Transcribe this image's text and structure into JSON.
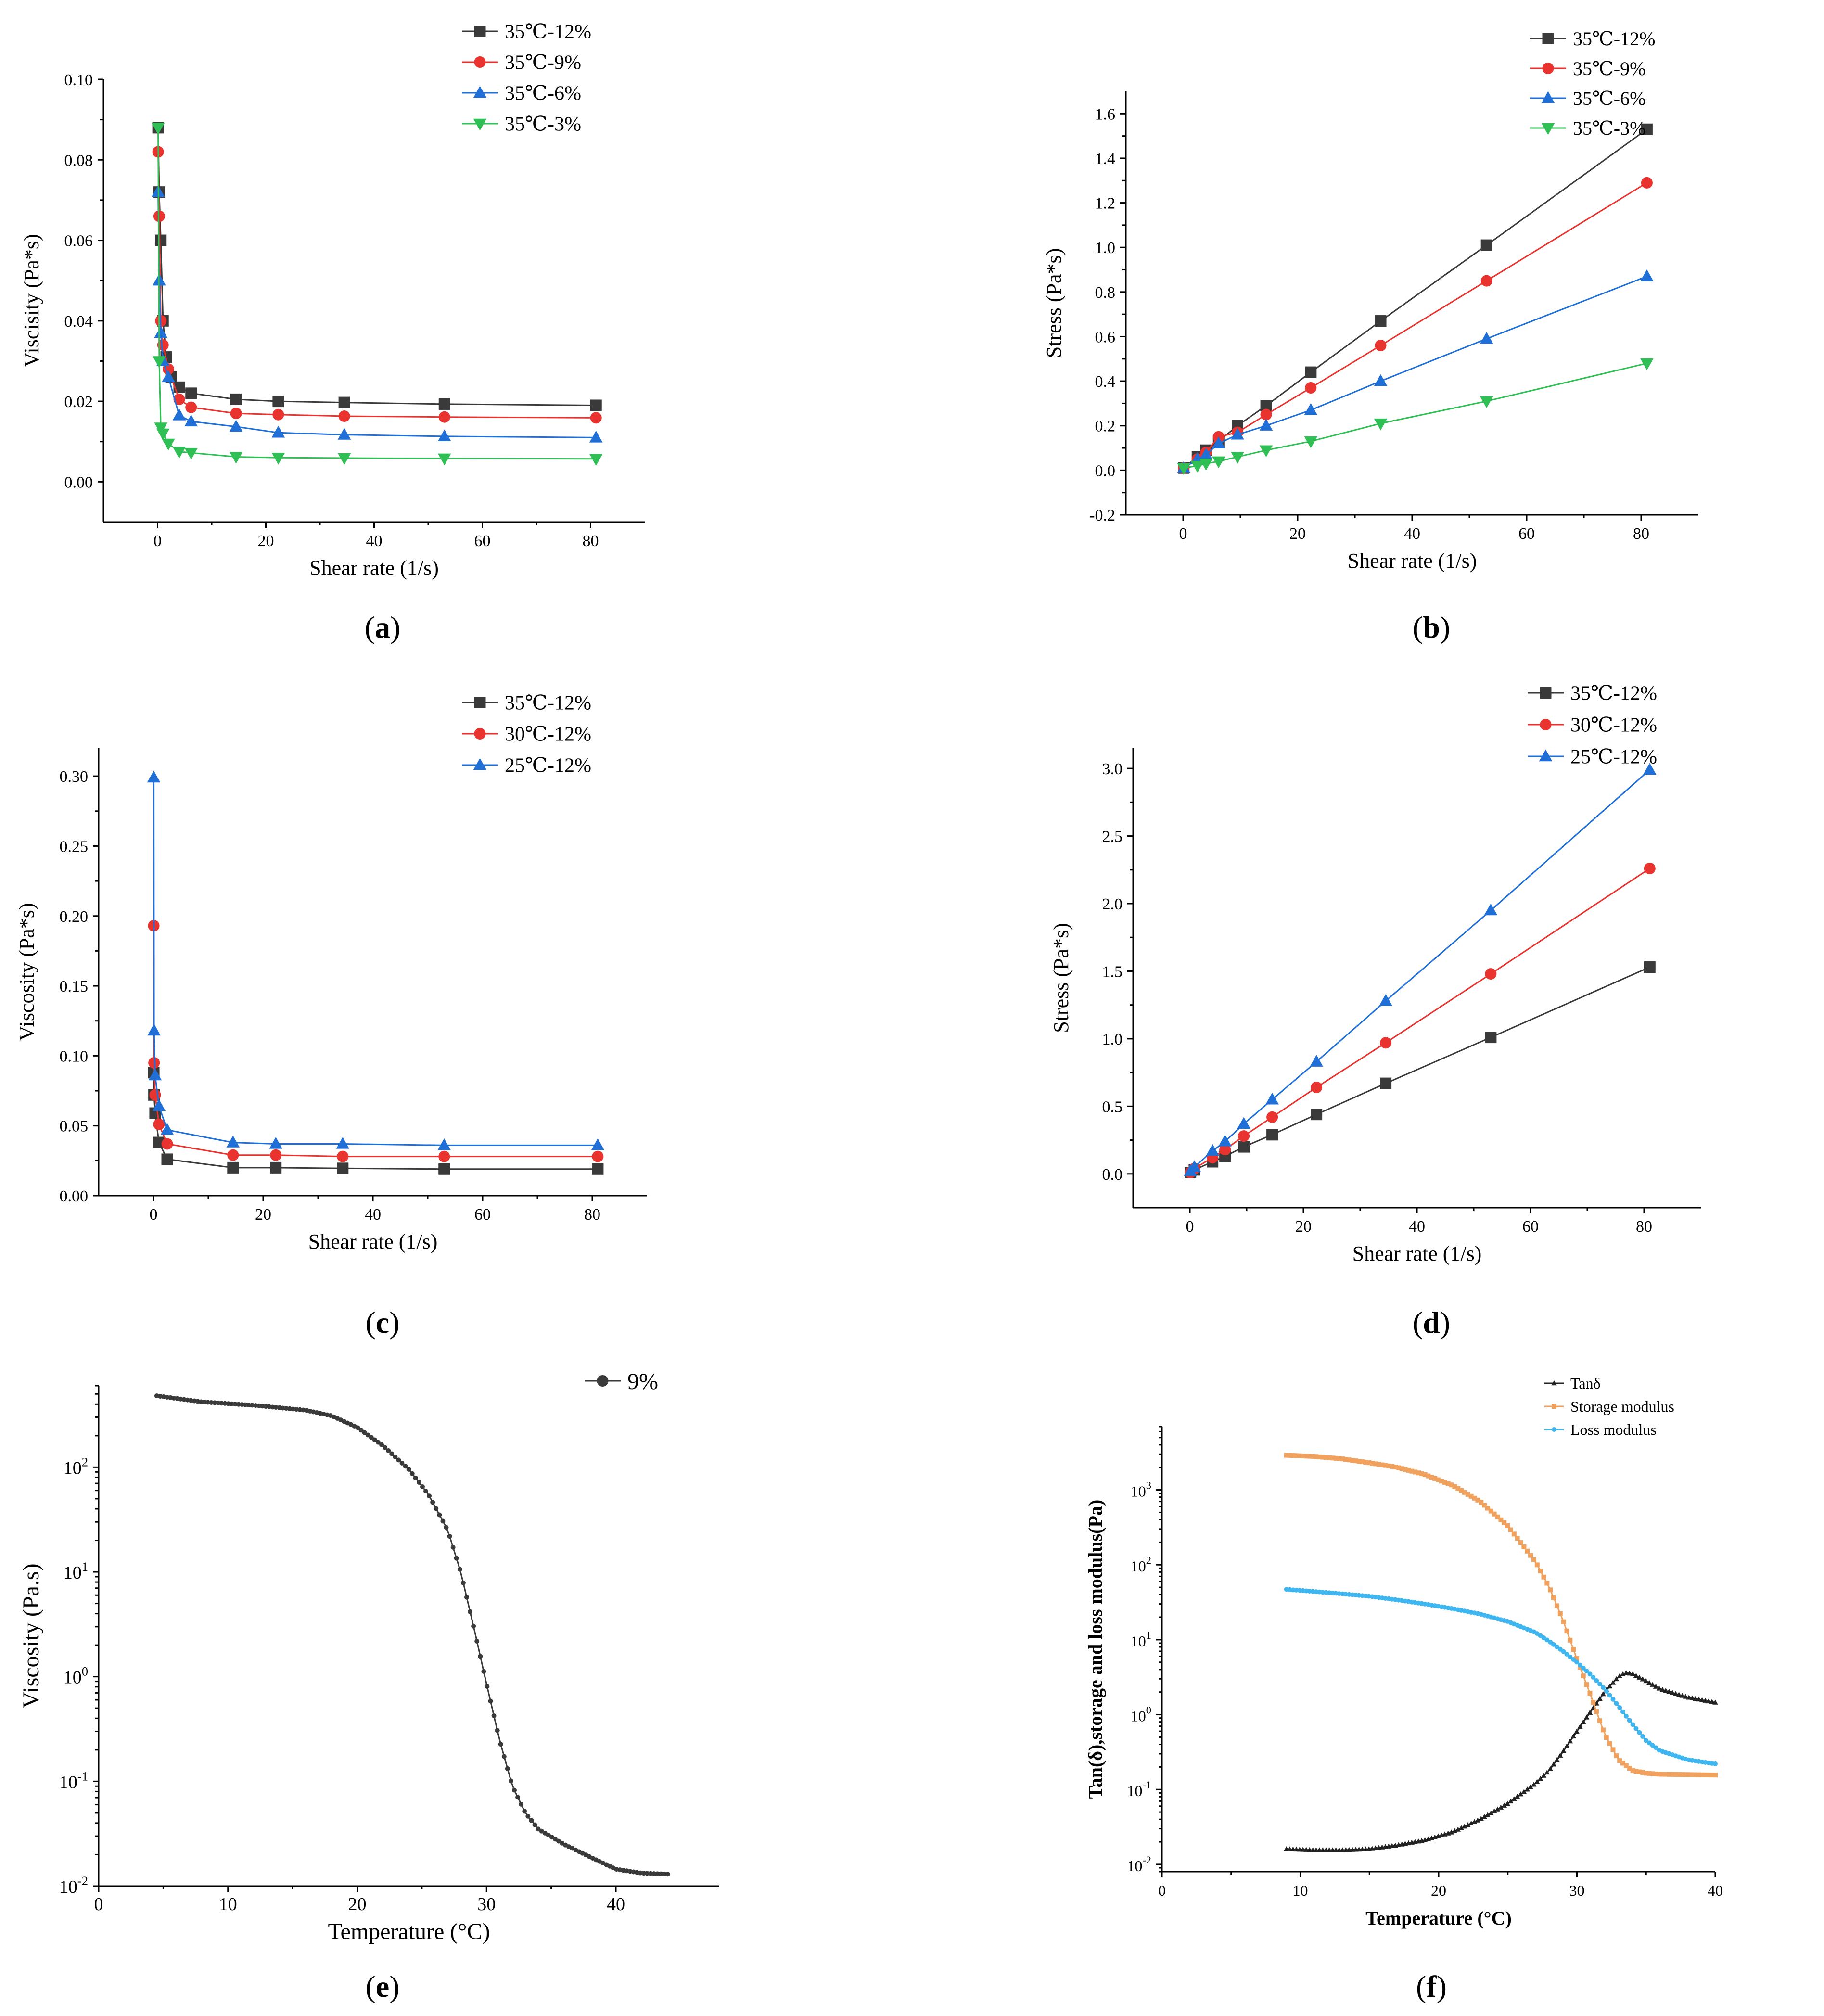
{
  "panel_labels": [
    "a",
    "b",
    "c",
    "d",
    "e",
    "f"
  ],
  "colors": {
    "black": "#3a3a3a",
    "red": "#e8332f",
    "blue": "#1f6fd6",
    "green": "#2fbf55",
    "orange": "#f0a15e",
    "skyblue": "#3fb6f0",
    "dark": "#222222"
  },
  "chart_data": [
    {
      "id": "a",
      "type": "line",
      "title": "",
      "xlabel": "Shear rate (1/s)",
      "ylabel": "Viscisity (Pa*s)",
      "xlim": [
        -10,
        90
      ],
      "ylim": [
        -0.01,
        0.1
      ],
      "xticks": [
        0,
        20,
        40,
        60,
        80
      ],
      "yticks": [
        0.0,
        0.02,
        0.04,
        0.06,
        0.08,
        0.1
      ],
      "ytick_labels": [
        "0.00",
        "0.02",
        "0.04",
        "0.06",
        "0.08",
        "0.10"
      ],
      "legend_position": "top-right",
      "series": [
        {
          "name": "35℃-12%",
          "color": "#3a3a3a",
          "marker": "square",
          "x": [
            0.1,
            0.3,
            0.6,
            1.0,
            1.6,
            2.5,
            4.0,
            6.2,
            14.5,
            22.3,
            34.5,
            53.0,
            81.0
          ],
          "y": [
            0.088,
            0.072,
            0.06,
            0.04,
            0.031,
            0.026,
            0.0235,
            0.022,
            0.0205,
            0.02,
            0.0197,
            0.0193,
            0.019
          ]
        },
        {
          "name": "35℃-9%",
          "color": "#e8332f",
          "marker": "circle",
          "x": [
            0.1,
            0.3,
            0.6,
            1.0,
            2.0,
            4.0,
            6.2,
            14.5,
            22.3,
            34.5,
            53.0,
            81.0
          ],
          "y": [
            0.082,
            0.066,
            0.04,
            0.034,
            0.028,
            0.0205,
            0.0185,
            0.017,
            0.0167,
            0.0163,
            0.0161,
            0.0159
          ]
        },
        {
          "name": "35℃-6%",
          "color": "#1f6fd6",
          "marker": "triangle-up",
          "x": [
            0.1,
            0.3,
            0.6,
            1.0,
            2.0,
            4.0,
            6.2,
            14.5,
            22.3,
            34.5,
            53.0,
            81.0
          ],
          "y": [
            0.072,
            0.05,
            0.037,
            0.03,
            0.026,
            0.0165,
            0.015,
            0.0137,
            0.0122,
            0.0117,
            0.0113,
            0.011
          ]
        },
        {
          "name": "35℃-3%",
          "color": "#2fbf55",
          "marker": "triangle-down",
          "x": [
            0.1,
            0.3,
            0.6,
            1.0,
            2.0,
            4.0,
            6.2,
            14.5,
            22.3,
            34.5,
            53.0,
            81.0
          ],
          "y": [
            0.088,
            0.03,
            0.0135,
            0.012,
            0.0095,
            0.0075,
            0.0072,
            0.0062,
            0.006,
            0.0059,
            0.0058,
            0.0057
          ]
        }
      ]
    },
    {
      "id": "b",
      "type": "line",
      "title": "",
      "xlabel": "Shear rate (1/s)",
      "ylabel": "Stress (Pa*s)",
      "xlim": [
        -10,
        90
      ],
      "ylim": [
        -0.2,
        1.7
      ],
      "xticks": [
        0,
        20,
        40,
        60,
        80
      ],
      "yticks": [
        -0.2,
        0.0,
        0.2,
        0.4,
        0.6,
        0.8,
        1.0,
        1.2,
        1.4,
        1.6
      ],
      "ytick_labels": [
        "-0.2",
        "0.0",
        "0.2",
        "0.4",
        "0.6",
        "0.8",
        "1.0",
        "1.2",
        "1.4",
        "1.6"
      ],
      "legend_position": "top-right",
      "series": [
        {
          "name": "35℃-12%",
          "color": "#3a3a3a",
          "marker": "square",
          "x": [
            0.1,
            2.5,
            4.0,
            6.2,
            9.5,
            14.5,
            22.3,
            34.5,
            53.0,
            81.0
          ],
          "y": [
            0.01,
            0.06,
            0.09,
            0.13,
            0.2,
            0.29,
            0.44,
            0.67,
            1.01,
            1.53
          ]
        },
        {
          "name": "35℃-9%",
          "color": "#e8332f",
          "marker": "circle",
          "x": [
            0.1,
            2.5,
            4.0,
            6.2,
            9.5,
            14.5,
            22.3,
            34.5,
            53.0,
            81.0
          ],
          "y": [
            0.01,
            0.05,
            0.08,
            0.15,
            0.17,
            0.25,
            0.37,
            0.56,
            0.85,
            1.29
          ]
        },
        {
          "name": "35℃-6%",
          "color": "#1f6fd6",
          "marker": "triangle-up",
          "x": [
            0.1,
            2.5,
            4.0,
            6.2,
            9.5,
            14.5,
            22.3,
            34.5,
            53.0,
            81.0
          ],
          "y": [
            0.01,
            0.05,
            0.07,
            0.12,
            0.16,
            0.2,
            0.27,
            0.4,
            0.59,
            0.87
          ]
        },
        {
          "name": "35℃-3%",
          "color": "#2fbf55",
          "marker": "triangle-down",
          "x": [
            0.1,
            2.5,
            4.0,
            6.2,
            9.5,
            14.5,
            22.3,
            34.5,
            53.0,
            81.0
          ],
          "y": [
            0.01,
            0.02,
            0.03,
            0.04,
            0.06,
            0.09,
            0.13,
            0.21,
            0.31,
            0.48
          ]
        }
      ]
    },
    {
      "id": "c",
      "type": "line",
      "title": "",
      "xlabel": "Shear rate (1/s)",
      "ylabel": "Viscosity (Pa*s)",
      "xlim": [
        -10,
        90
      ],
      "ylim": [
        0,
        0.32
      ],
      "xticks": [
        0,
        20,
        40,
        60,
        80
      ],
      "yticks": [
        0.0,
        0.05,
        0.1,
        0.15,
        0.2,
        0.25,
        0.3
      ],
      "ytick_labels": [
        "0.00",
        "0.05",
        "0.10",
        "0.15",
        "0.20",
        "0.25",
        "0.30"
      ],
      "legend_position": "top-right",
      "series": [
        {
          "name": "35℃-12%",
          "color": "#3a3a3a",
          "marker": "square",
          "x": [
            0.05,
            0.1,
            0.3,
            1.0,
            2.5,
            14.5,
            22.3,
            34.5,
            53.0,
            81.0
          ],
          "y": [
            0.088,
            0.072,
            0.059,
            0.038,
            0.026,
            0.02,
            0.02,
            0.0195,
            0.019,
            0.019
          ]
        },
        {
          "name": "30℃-12%",
          "color": "#e8332f",
          "marker": "circle",
          "x": [
            0.05,
            0.1,
            0.3,
            1.0,
            2.5,
            14.5,
            22.3,
            34.5,
            53.0,
            81.0
          ],
          "y": [
            0.193,
            0.095,
            0.072,
            0.051,
            0.037,
            0.029,
            0.029,
            0.028,
            0.028,
            0.028
          ]
        },
        {
          "name": "25℃-12%",
          "color": "#1f6fd6",
          "marker": "triangle-up",
          "x": [
            0.05,
            0.1,
            0.3,
            1.0,
            2.5,
            14.5,
            22.3,
            34.5,
            53.0,
            81.0
          ],
          "y": [
            0.299,
            0.118,
            0.086,
            0.064,
            0.047,
            0.038,
            0.037,
            0.037,
            0.036,
            0.036
          ]
        }
      ]
    },
    {
      "id": "d",
      "type": "line",
      "title": "",
      "xlabel": "Shear rate (1/s)",
      "ylabel": "Stress (Pa*s)",
      "xlim": [
        -10,
        90
      ],
      "ylim": [
        -0.25,
        3.15
      ],
      "xticks": [
        0,
        20,
        40,
        60,
        80
      ],
      "yticks": [
        0.0,
        0.5,
        1.0,
        1.5,
        2.0,
        2.5,
        3.0
      ],
      "ytick_labels": [
        "0.0",
        "0.5",
        "1.0",
        "1.5",
        "2.0",
        "2.5",
        "3.0"
      ],
      "legend_position": "top-right",
      "series": [
        {
          "name": "35℃-12%",
          "color": "#3a3a3a",
          "marker": "square",
          "x": [
            0.1,
            0.8,
            4.0,
            6.2,
            9.5,
            14.5,
            22.3,
            34.5,
            53.0,
            81.0
          ],
          "y": [
            0.01,
            0.03,
            0.09,
            0.13,
            0.2,
            0.29,
            0.44,
            0.67,
            1.01,
            1.53
          ]
        },
        {
          "name": "30℃-12%",
          "color": "#e8332f",
          "marker": "circle",
          "x": [
            0.1,
            0.8,
            4.0,
            6.2,
            9.5,
            14.5,
            22.3,
            34.5,
            53.0,
            81.0
          ],
          "y": [
            0.01,
            0.04,
            0.12,
            0.18,
            0.28,
            0.42,
            0.64,
            0.97,
            1.48,
            2.26
          ]
        },
        {
          "name": "25℃-12%",
          "color": "#1f6fd6",
          "marker": "triangle-up",
          "x": [
            0.1,
            0.8,
            4.0,
            6.2,
            9.5,
            14.5,
            22.3,
            34.5,
            53.0,
            81.0
          ],
          "y": [
            0.02,
            0.05,
            0.17,
            0.24,
            0.37,
            0.55,
            0.83,
            1.28,
            1.95,
            2.99
          ]
        }
      ]
    },
    {
      "id": "e",
      "type": "line",
      "title": "",
      "xlabel": "Temperature (°C)",
      "ylabel": "Viscosity (Pa.s)",
      "xlim": [
        0,
        48
      ],
      "ylim": [
        0.01,
        600
      ],
      "yscale": "log",
      "xticks": [
        0,
        10,
        20,
        30,
        40
      ],
      "yticks": [
        0.01,
        0.1,
        1,
        10,
        100
      ],
      "ytick_base": [
        "10",
        "10",
        "10",
        "10",
        "10"
      ],
      "ytick_exp": [
        "-2",
        "-1",
        "0",
        "1",
        "2"
      ],
      "legend_position": "top-right",
      "series": [
        {
          "name": "9%",
          "color": "#3a3a3a",
          "marker": "small-dot",
          "x": [
            4.5,
            8,
            12,
            16,
            18,
            20,
            22,
            24,
            25.5,
            27,
            28,
            29,
            30,
            31,
            32,
            33,
            34,
            36,
            38,
            40,
            42,
            44
          ],
          "y": [
            480,
            420,
            390,
            350,
            310,
            240,
            160,
            95,
            55,
            25,
            10,
            3,
            0.85,
            0.25,
            0.09,
            0.05,
            0.035,
            0.025,
            0.019,
            0.0145,
            0.0133,
            0.013
          ]
        }
      ]
    },
    {
      "id": "f",
      "type": "line",
      "title": "",
      "xlabel": "Temperature (°C)",
      "ylabel": "Tan(δ),storage and loss modulus(Pa)",
      "xlim": [
        0,
        40
      ],
      "ylim": [
        0.008,
        7000
      ],
      "yscale": "log",
      "xticks": [
        0,
        10,
        20,
        30,
        40
      ],
      "yticks": [
        0.01,
        0.1,
        1,
        10,
        100,
        1000
      ],
      "ytick_base": [
        "10",
        "10",
        "10",
        "10",
        "10",
        "10"
      ],
      "ytick_exp": [
        "-2",
        "-1",
        "0",
        "1",
        "2",
        "3"
      ],
      "legend_position": "top-right",
      "series": [
        {
          "name": "Tanδ",
          "color": "#222222",
          "marker": "small-triangle",
          "x": [
            9,
            11,
            13,
            15,
            17,
            19,
            21,
            23,
            25,
            27,
            28,
            29,
            30,
            31,
            32,
            33,
            33.5,
            34,
            35,
            36,
            38,
            40
          ],
          "y": [
            0.016,
            0.0155,
            0.0155,
            0.016,
            0.018,
            0.021,
            0.027,
            0.04,
            0.065,
            0.12,
            0.18,
            0.32,
            0.6,
            1.1,
            2.0,
            3.2,
            3.6,
            3.5,
            2.8,
            2.2,
            1.7,
            1.45
          ]
        },
        {
          "name": "Storage modulus",
          "color": "#f0a15e",
          "marker": "small-square",
          "x": [
            9,
            11,
            13,
            15,
            17,
            19,
            21,
            23,
            25,
            27,
            28,
            29,
            30,
            31,
            32,
            33,
            34,
            35,
            36,
            38,
            40
          ],
          "y": [
            2900,
            2800,
            2600,
            2300,
            2000,
            1600,
            1150,
            700,
            330,
            110,
            50,
            18,
            5.5,
            1.8,
            0.55,
            0.25,
            0.18,
            0.165,
            0.16,
            0.158,
            0.156
          ]
        },
        {
          "name": "Loss modulus",
          "color": "#3fb6f0",
          "marker": "small-circle",
          "x": [
            9,
            11,
            13,
            15,
            17,
            19,
            21,
            23,
            25,
            27,
            28,
            29,
            30,
            31,
            32,
            33,
            34,
            35,
            36,
            38,
            40
          ],
          "y": [
            47,
            44,
            41,
            38,
            34,
            30,
            26,
            22,
            17.5,
            12.5,
            9.5,
            7,
            5,
            3.4,
            2.2,
            1.3,
            0.75,
            0.45,
            0.33,
            0.25,
            0.22
          ]
        }
      ]
    }
  ]
}
